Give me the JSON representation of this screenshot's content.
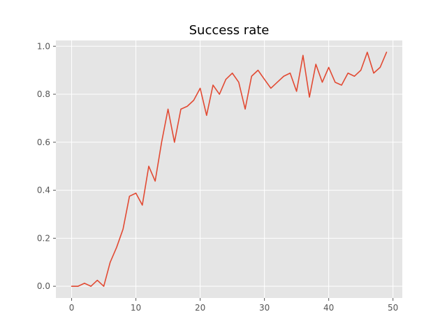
{
  "chart_data": {
    "type": "line",
    "title": "Success rate",
    "xlabel": "",
    "ylabel": "",
    "xlim": [
      -2.45,
      51.45
    ],
    "ylim": [
      -0.049,
      1.024
    ],
    "x_ticks": [
      0,
      10,
      20,
      30,
      40,
      50
    ],
    "y_ticks": [
      0.0,
      0.2,
      0.4,
      0.6,
      0.8,
      1.0
    ],
    "x_tick_labels": [
      "0",
      "10",
      "20",
      "30",
      "40",
      "50"
    ],
    "y_tick_labels": [
      "0.0",
      "0.2",
      "0.4",
      "0.6",
      "0.8",
      "1.0"
    ],
    "grid": true,
    "line_color": "#e24a33",
    "background_color": "#e5e5e5",
    "grid_color": "#ffffff",
    "series": [
      {
        "x": [
          0,
          1,
          2,
          3,
          4,
          5,
          6,
          7,
          8,
          9,
          10,
          11,
          12,
          13,
          14,
          15,
          16,
          17,
          18,
          19,
          20,
          21,
          22,
          23,
          24,
          25,
          26,
          27,
          28,
          29,
          30,
          31,
          32,
          33,
          34,
          35,
          36,
          37,
          38,
          39,
          40,
          41,
          42,
          43,
          44,
          45,
          46,
          47,
          48,
          49
        ],
        "values": [
          0.0,
          0.0,
          0.0125,
          0.0,
          0.025,
          0.0,
          0.1,
          0.162,
          0.238,
          0.375,
          0.388,
          0.338,
          0.5,
          0.438,
          0.6,
          0.738,
          0.6,
          0.738,
          0.75,
          0.775,
          0.825,
          0.712,
          0.838,
          0.8,
          0.862,
          0.888,
          0.85,
          0.738,
          0.875,
          0.9,
          0.862,
          0.825,
          0.85,
          0.875,
          0.888,
          0.812,
          0.962,
          0.788,
          0.925,
          0.85,
          0.912,
          0.85,
          0.838,
          0.888,
          0.875,
          0.9,
          0.975,
          0.888,
          0.912,
          0.975
        ]
      }
    ]
  }
}
